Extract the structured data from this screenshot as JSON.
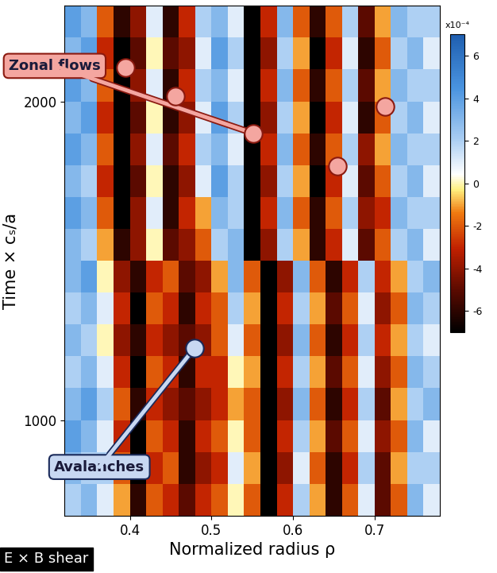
{
  "chart_data": {
    "type": "heatmap",
    "xlabel": "Normalized radius ρ",
    "ylabel": "Time × cₛ/a",
    "corner_label": "E × B shear",
    "x": [
      0.33,
      0.35,
      0.37,
      0.39,
      0.41,
      0.43,
      0.45,
      0.47,
      0.49,
      0.51,
      0.53,
      0.55,
      0.57,
      0.59,
      0.61,
      0.63,
      0.65,
      0.67,
      0.69,
      0.71,
      0.73,
      0.75,
      0.77
    ],
    "y": [
      750,
      850,
      950,
      1050,
      1150,
      1250,
      1350,
      1450,
      1550,
      1650,
      1750,
      1850,
      1950,
      2050,
      2150,
      2250
    ],
    "cells": [
      [
        2,
        3,
        1,
        -1,
        -6,
        -2,
        -3,
        -5,
        -3,
        -2,
        0,
        -2,
        -7,
        -3,
        2,
        -1,
        -6,
        -2,
        1,
        -5,
        -2,
        3,
        1
      ],
      [
        3,
        2,
        2,
        -2,
        -7,
        -3,
        -2,
        -6,
        -4,
        -3,
        1,
        -1,
        -7,
        -4,
        1,
        -2,
        -6,
        -3,
        2,
        -5,
        -1,
        2,
        2
      ],
      [
        4,
        3,
        1,
        -3,
        -7,
        -2,
        -3,
        -6,
        -3,
        -2,
        0,
        -2,
        -7,
        -3,
        2,
        -1,
        -5,
        -2,
        1,
        -4,
        -2,
        3,
        1
      ],
      [
        3,
        4,
        2,
        -2,
        -6,
        -3,
        -4,
        -5,
        -4,
        -3,
        -1,
        -2,
        -7,
        -4,
        3,
        -2,
        -6,
        -3,
        2,
        -5,
        -1,
        2,
        3
      ],
      [
        2,
        3,
        1,
        -3,
        -7,
        -2,
        -3,
        -6,
        -3,
        -3,
        0,
        -1,
        -7,
        -3,
        2,
        -1,
        -5,
        -2,
        1,
        -4,
        -2,
        3,
        2
      ],
      [
        3,
        2,
        0,
        -4,
        -6,
        -3,
        -4,
        -5,
        -4,
        -2,
        1,
        -2,
        -7,
        -4,
        3,
        -2,
        -6,
        -3,
        2,
        -3,
        -1,
        2,
        1
      ],
      [
        2,
        3,
        1,
        -3,
        -7,
        -2,
        -3,
        -6,
        -3,
        -2,
        2,
        -1,
        -7,
        -3,
        2,
        -1,
        -5,
        -2,
        1,
        -4,
        -2,
        3,
        2
      ],
      [
        3,
        4,
        0,
        -4,
        -6,
        -3,
        -2,
        -5,
        -4,
        -1,
        3,
        -2,
        -7,
        -4,
        3,
        -2,
        -6,
        -3,
        2,
        -3,
        -1,
        2,
        3
      ],
      [
        3,
        2,
        -1,
        -6,
        -4,
        0,
        -5,
        -4,
        -2,
        2,
        3,
        -7,
        -4,
        2,
        -1,
        -6,
        -3,
        1,
        -5,
        -2,
        2,
        3,
        1
      ],
      [
        4,
        3,
        -2,
        -7,
        -4,
        1,
        -6,
        -3,
        -1,
        3,
        2,
        -7,
        -3,
        3,
        -2,
        -6,
        -2,
        2,
        -4,
        -3,
        3,
        2,
        2
      ],
      [
        3,
        2,
        -3,
        -7,
        -5,
        0,
        -6,
        -4,
        1,
        4,
        2,
        -7,
        -4,
        2,
        -1,
        -7,
        -3,
        1,
        -5,
        -2,
        2,
        3,
        1
      ],
      [
        4,
        3,
        -2,
        -7,
        -4,
        1,
        -5,
        -3,
        2,
        3,
        1,
        -7,
        -3,
        3,
        -2,
        -6,
        -2,
        2,
        -4,
        -1,
        3,
        2,
        2
      ],
      [
        3,
        4,
        -3,
        -7,
        -5,
        0,
        -6,
        -4,
        1,
        4,
        2,
        -7,
        -4,
        2,
        -1,
        -7,
        -3,
        1,
        -6,
        -2,
        2,
        3,
        1
      ],
      [
        4,
        3,
        -2,
        -7,
        -4,
        1,
        -6,
        -3,
        2,
        3,
        1,
        -7,
        -3,
        3,
        -2,
        -6,
        -2,
        2,
        -5,
        -1,
        3,
        2,
        2
      ],
      [
        3,
        4,
        -3,
        -7,
        -5,
        0,
        -5,
        -4,
        1,
        4,
        2,
        -7,
        -4,
        2,
        -1,
        -7,
        -3,
        1,
        -6,
        -2,
        2,
        3,
        1
      ],
      [
        4,
        3,
        -2,
        -6,
        -4,
        1,
        -6,
        -3,
        2,
        3,
        1,
        -7,
        -3,
        3,
        -2,
        -6,
        -2,
        2,
        -5,
        -1,
        3,
        2,
        2
      ]
    ],
    "xlim": [
      0.32,
      0.78
    ],
    "xticks": [
      0.4,
      0.5,
      0.6,
      0.7
    ],
    "ylim": [
      700,
      2300
    ],
    "yticks": [
      1000,
      2000
    ],
    "colorbar": {
      "range": [
        -7,
        7
      ],
      "ticks": [
        -6,
        -4,
        -2,
        0,
        2,
        4,
        6
      ],
      "label": "x10⁻⁴"
    },
    "annotations": [
      {
        "text": "Zonal flows",
        "points": [
          [
            0.395,
            2107
          ],
          [
            0.456,
            2017
          ],
          [
            0.551,
            1900
          ],
          [
            0.654,
            1797
          ],
          [
            0.713,
            1985
          ]
        ]
      },
      {
        "text": "Avalanches",
        "points": [
          [
            0.479,
            1225
          ]
        ]
      }
    ]
  }
}
